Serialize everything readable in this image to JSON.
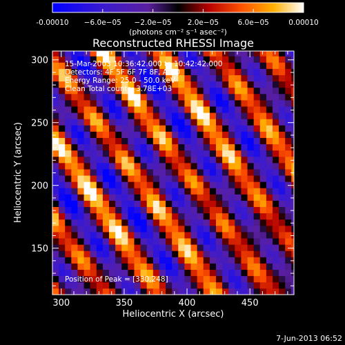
{
  "chart_data": {
    "type": "heatmap",
    "title": "Reconstructed RHESSI Image",
    "xlabel": "Heliocentric X (arcsec)",
    "ylabel": "Heliocentric Y (arcsec)",
    "xlim": [
      293,
      485
    ],
    "ylim": [
      113,
      307
    ],
    "xticks": [
      300,
      350,
      400,
      450
    ],
    "yticks": [
      150,
      200,
      250,
      300
    ],
    "colorbar": {
      "min": -0.0001,
      "max": 0.0001,
      "colormap": "blue-purple-red-yellow-white",
      "tick_values": [
        -0.0001,
        -6e-05,
        -2e-05,
        2e-05,
        6e-05,
        0.0001
      ],
      "tick_labels": [
        "-0.00010",
        "−6.0e−05",
        "−2.0e−05",
        "2.0e−05",
        "6.0e−05",
        "0.00010"
      ],
      "units_label": "(photons cm⁻² s⁻¹ asec⁻²)"
    },
    "annotations": [
      "15-Mar-2003 10:36:42.000 to 10:42:42.000",
      "Detectors: 4F 5F 6F 7F 8F, Att 0",
      "Energy Range: 25.0 - 50.0 keV",
      "Clean     Total counts: 3.78E+03",
      "Position of Peak = [330,248]"
    ],
    "peak": {
      "x": 330,
      "y": 248
    }
  },
  "footer_date": "7-Jun-2013 06:52",
  "colors": {
    "background": "#000000",
    "foreground": "#ffffff",
    "colormap_stops": [
      "#0000ff",
      "#5a1fb0",
      "#3c0a3c",
      "#000000",
      "#b40000",
      "#ff5000",
      "#ffa000",
      "#ffff50",
      "#ffffff"
    ]
  }
}
